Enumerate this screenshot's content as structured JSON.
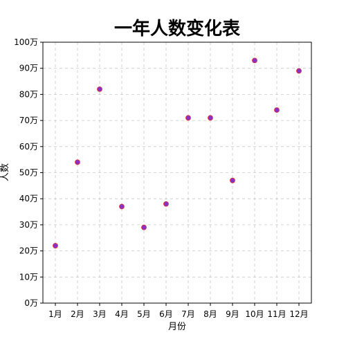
{
  "chart_data": {
    "type": "scatter",
    "title": "一年人数变化表",
    "xlabel": "月份",
    "ylabel": "人数",
    "categories": [
      "1月",
      "2月",
      "3月",
      "4月",
      "5月",
      "6月",
      "7月",
      "8月",
      "9月",
      "10月",
      "11月",
      "12月"
    ],
    "values": [
      22,
      54,
      82,
      37,
      29,
      38,
      71,
      71,
      47,
      93,
      74,
      89
    ],
    "y_tick_values": [
      0,
      10,
      20,
      30,
      40,
      50,
      60,
      70,
      80,
      90,
      100
    ],
    "y_tick_labels": [
      "0万",
      "10万",
      "20万",
      "30万",
      "40万",
      "50万",
      "60万",
      "70万",
      "80万",
      "90万",
      "100万"
    ],
    "ylim": [
      0,
      100
    ],
    "grid": true,
    "marker_color": "#8b2fc9",
    "marker_edge_color": "#e0302e"
  }
}
